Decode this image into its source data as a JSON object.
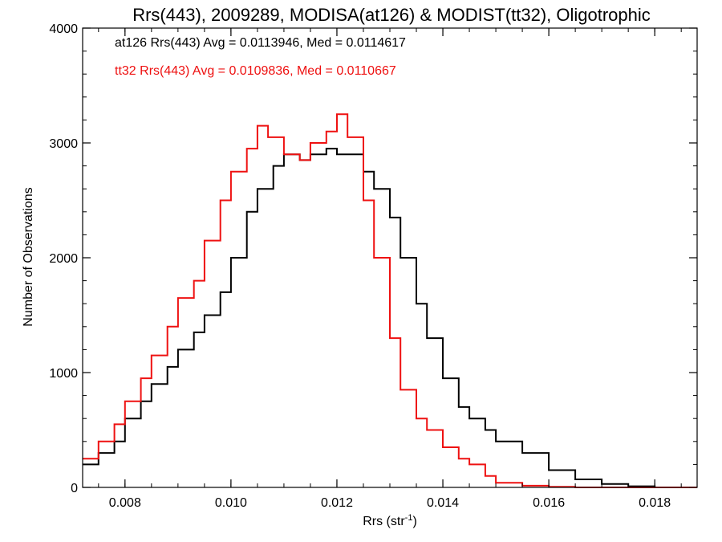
{
  "chart_data": {
    "type": "line",
    "title": "Rrs(443), 2009289, MODISA(at126) & MODIST(tt32), Oligotrophic",
    "xlabel": "Rrs (str",
    "xlabel_sup": "-1",
    "xlabel_close": ")",
    "ylabel": "Number of Observations",
    "xlim": [
      0.0072,
      0.0188
    ],
    "ylim": [
      0,
      4000
    ],
    "xticks": [
      {
        "value": 0.008,
        "label": "0.008"
      },
      {
        "value": 0.01,
        "label": "0.010"
      },
      {
        "value": 0.012,
        "label": "0.012"
      },
      {
        "value": 0.014,
        "label": "0.014"
      },
      {
        "value": 0.016,
        "label": "0.016"
      },
      {
        "value": 0.018,
        "label": "0.018"
      }
    ],
    "yticks": [
      {
        "value": 0,
        "label": "0"
      },
      {
        "value": 1000,
        "label": "1000"
      },
      {
        "value": 2000,
        "label": "2000"
      },
      {
        "value": 3000,
        "label": "3000"
      },
      {
        "value": 4000,
        "label": "4000"
      }
    ],
    "annotations": [
      {
        "text": "at126 Rrs(443) Avg = 0.0113946, Med = 0.0114617",
        "color": "#000000"
      },
      {
        "text": "tt32 Rrs(443) Avg = 0.0109836, Med = 0.0110667",
        "color": "#ee1111"
      }
    ],
    "step": true,
    "series": [
      {
        "color": "#000000",
        "x": [
          0.0072,
          0.0075,
          0.0078,
          0.008,
          0.0083,
          0.0085,
          0.0088,
          0.009,
          0.0093,
          0.0095,
          0.0098,
          0.01,
          0.0103,
          0.0105,
          0.0108,
          0.011,
          0.0113,
          0.0115,
          0.0118,
          0.012,
          0.0123,
          0.0125,
          0.0127,
          0.013,
          0.0132,
          0.0135,
          0.0137,
          0.014,
          0.0143,
          0.0145,
          0.0148,
          0.015,
          0.0155,
          0.016,
          0.0165,
          0.017,
          0.0175,
          0.018,
          0.0188
        ],
        "y": [
          200,
          300,
          400,
          600,
          750,
          900,
          1050,
          1200,
          1350,
          1500,
          1700,
          2000,
          2400,
          2600,
          2800,
          2900,
          2850,
          2900,
          2950,
          2900,
          2900,
          2750,
          2600,
          2350,
          2000,
          1600,
          1300,
          950,
          700,
          600,
          500,
          400,
          300,
          150,
          70,
          30,
          10,
          0,
          0
        ]
      },
      {
        "color": "#ee1111",
        "x": [
          0.0072,
          0.0075,
          0.0078,
          0.008,
          0.0083,
          0.0085,
          0.0088,
          0.009,
          0.0093,
          0.0095,
          0.0098,
          0.01,
          0.0103,
          0.0105,
          0.0107,
          0.011,
          0.0113,
          0.0115,
          0.0118,
          0.012,
          0.0122,
          0.0125,
          0.0127,
          0.013,
          0.0132,
          0.0135,
          0.0137,
          0.014,
          0.0143,
          0.0145,
          0.0148,
          0.015,
          0.0155,
          0.016,
          0.0165,
          0.017,
          0.0175,
          0.018,
          0.0188
        ],
        "y": [
          250,
          400,
          550,
          750,
          950,
          1150,
          1400,
          1650,
          1800,
          2150,
          2500,
          2750,
          2950,
          3150,
          3050,
          2900,
          2850,
          3000,
          3100,
          3250,
          3050,
          2500,
          2000,
          1300,
          850,
          600,
          500,
          350,
          250,
          200,
          100,
          40,
          15,
          5,
          0,
          0,
          0,
          0,
          0
        ]
      }
    ]
  }
}
